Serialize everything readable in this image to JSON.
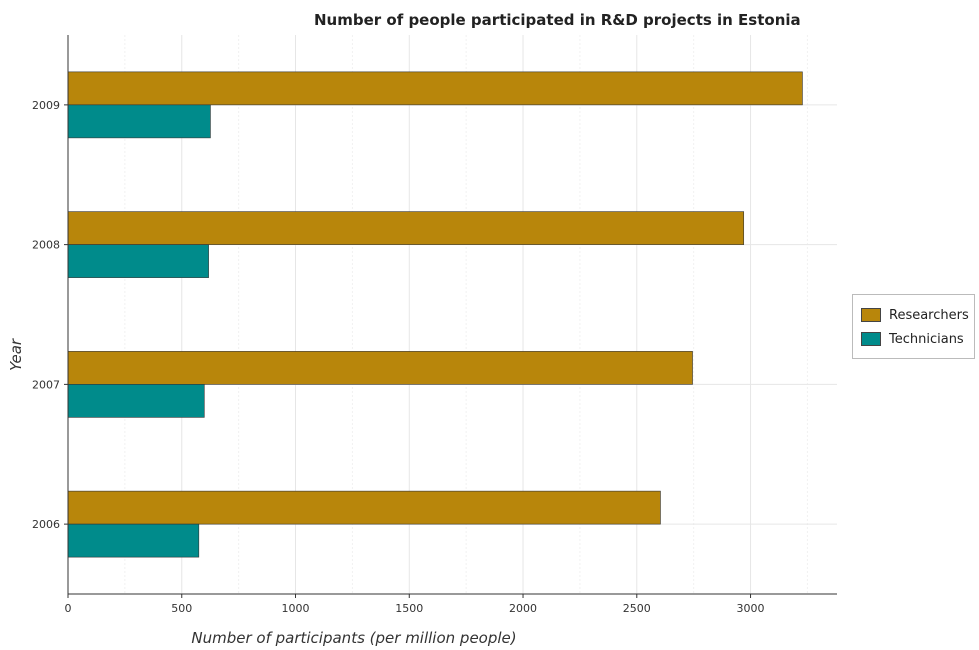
{
  "chart_data": {
    "type": "bar",
    "orientation": "horizontal",
    "title": "Number of people participated in R&D projects in Estonia",
    "xlabel": "Number of participants (per million people)",
    "ylabel": "Year",
    "categories": [
      "2006",
      "2007",
      "2008",
      "2009"
    ],
    "series": [
      {
        "name": "Researchers",
        "color": "#b8860b",
        "values": [
          2604,
          2745,
          2970,
          3228
        ]
      },
      {
        "name": "Technicians",
        "color": "#008b8b",
        "values": [
          575,
          599,
          618,
          626
        ]
      }
    ],
    "xlim": [
      0,
      3380
    ],
    "xticks": [
      0,
      500,
      1000,
      1500,
      2000,
      2500,
      3000
    ],
    "xtick_labels": [
      "0",
      "500",
      "1000",
      "1500",
      "2000",
      "2500",
      "3000"
    ],
    "grid": true,
    "legend_position": "right"
  }
}
